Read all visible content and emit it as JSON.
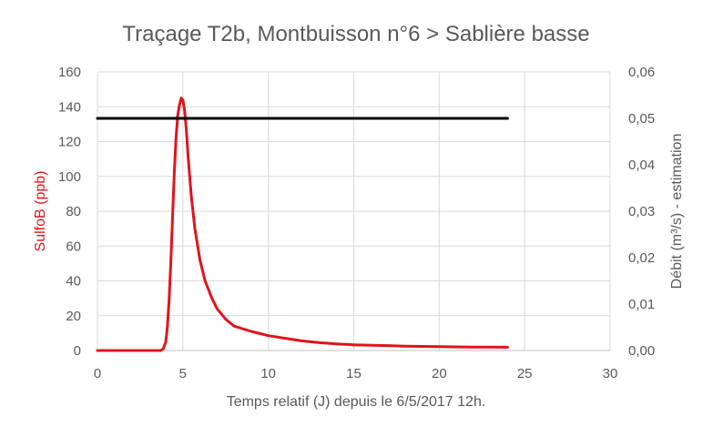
{
  "chart_data": {
    "type": "line",
    "title": "Traçage T2b, Montbuisson n°6 > Sablière basse",
    "xlabel": "Temps relatif (J) depuis le 6/5/2017 12h.",
    "ylabel_left": "SulfoB (ppb)",
    "ylabel_right": "Débit (m³/s) - estimation",
    "xlim": [
      0,
      30
    ],
    "ylim_left": [
      0,
      160
    ],
    "ylim_right": [
      0,
      0.06
    ],
    "x_ticks": [
      "0",
      "5",
      "10",
      "15",
      "20",
      "25",
      "30"
    ],
    "y_left_ticks": [
      "0",
      "20",
      "40",
      "60",
      "80",
      "100",
      "120",
      "140",
      "160"
    ],
    "y_right_ticks": [
      "0,00",
      "0,01",
      "0,02",
      "0,03",
      "0,04",
      "0,05",
      "0,06"
    ],
    "grid": true,
    "colors": {
      "sulfob": "#e0141c",
      "debit": "#000000",
      "grid": "#d9d9d9",
      "text": "#595959"
    },
    "series": [
      {
        "axis": "left",
        "x": [
          0,
          3.0,
          3.7,
          3.85,
          4.0,
          4.1,
          4.2,
          4.3,
          4.4,
          4.5,
          4.6,
          4.7,
          4.8,
          4.9,
          5.0,
          5.1,
          5.2,
          5.3,
          5.4,
          5.5,
          5.7,
          6.0,
          6.3,
          6.7,
          7.0,
          7.5,
          8.0,
          9.0,
          10.0,
          11.0,
          12.0,
          13.0,
          14.0,
          15.0,
          16.0,
          17.0,
          18.0,
          20.0,
          22.0,
          24.0
        ],
        "y": [
          0,
          0,
          0,
          1,
          5,
          14,
          30,
          52,
          78,
          102,
          122,
          135,
          141,
          145,
          144,
          138,
          127,
          112,
          100,
          88,
          70,
          52,
          40,
          30,
          24,
          18,
          14,
          11,
          8.5,
          7,
          5.5,
          4.5,
          3.8,
          3.3,
          3.0,
          2.8,
          2.5,
          2.2,
          2.0,
          1.9
        ]
      },
      {
        "axis": "right",
        "x": [
          0,
          24
        ],
        "y": [
          0.05,
          0.05
        ]
      }
    ]
  }
}
